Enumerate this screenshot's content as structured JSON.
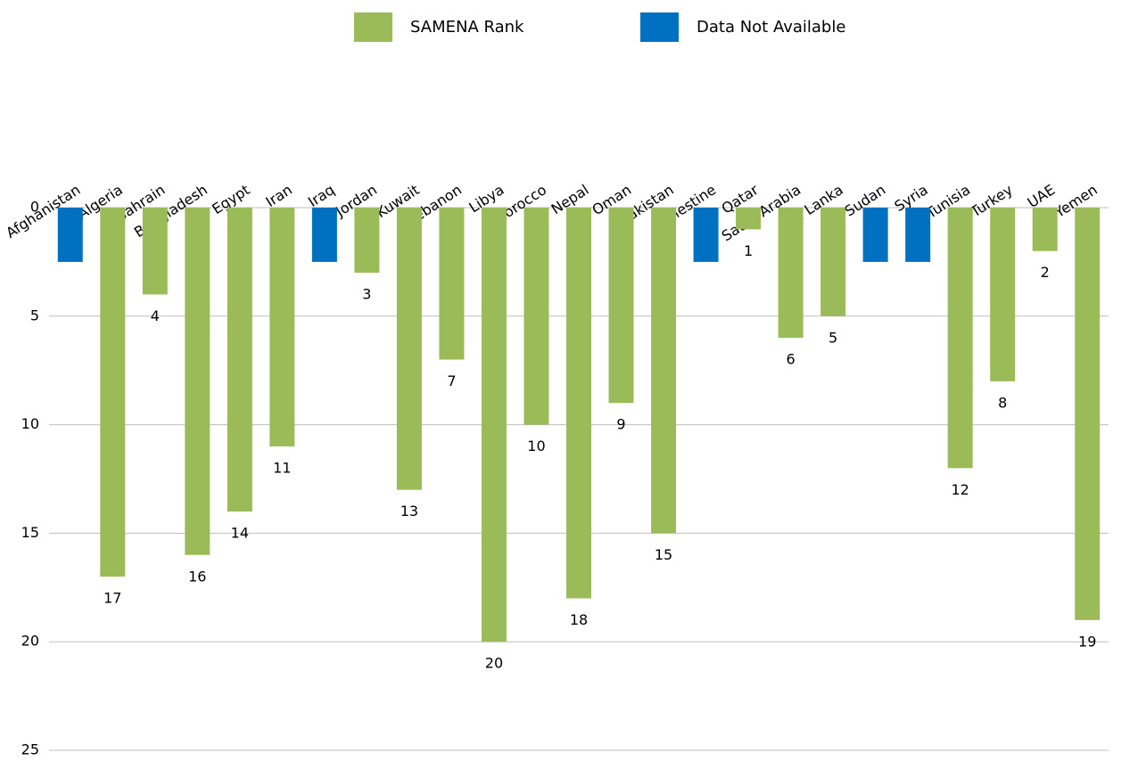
{
  "chart_data": {
    "type": "bar",
    "categories": [
      "Afghanistan",
      "Algeria",
      "Bahrain",
      "Bangladesh",
      "Egypt",
      "Iran",
      "Iraq",
      "Jordan",
      "Kuwait",
      "Lebanon",
      "Libya",
      "Morocco",
      "Nepal",
      "Oman",
      "Pakistan",
      "Palestine",
      "Qatar",
      "Saudi Arabia",
      "Sri Lanka",
      "Sudan",
      "Syria",
      "Tunisia",
      "Turkey",
      "UAE",
      "Yemen"
    ],
    "series": [
      {
        "name": "SAMENA Rank",
        "color": "#9bbb59",
        "values": [
          null,
          17,
          4,
          16,
          14,
          11,
          null,
          3,
          13,
          7,
          20,
          10,
          18,
          9,
          15,
          null,
          1,
          6,
          5,
          null,
          null,
          12,
          8,
          2,
          19
        ]
      },
      {
        "name": "Data Not Available",
        "color": "#0070c0",
        "values": [
          2.5,
          null,
          null,
          null,
          null,
          null,
          2.5,
          null,
          null,
          null,
          null,
          null,
          null,
          null,
          null,
          2.5,
          null,
          null,
          null,
          2.5,
          2.5,
          null,
          null,
          null,
          null
        ]
      }
    ],
    "ylim": [
      0,
      25
    ],
    "yticks": [
      0,
      5,
      10,
      15,
      20,
      25
    ],
    "y_inverted": true,
    "grid": true,
    "legend": "top",
    "stacked": false
  }
}
